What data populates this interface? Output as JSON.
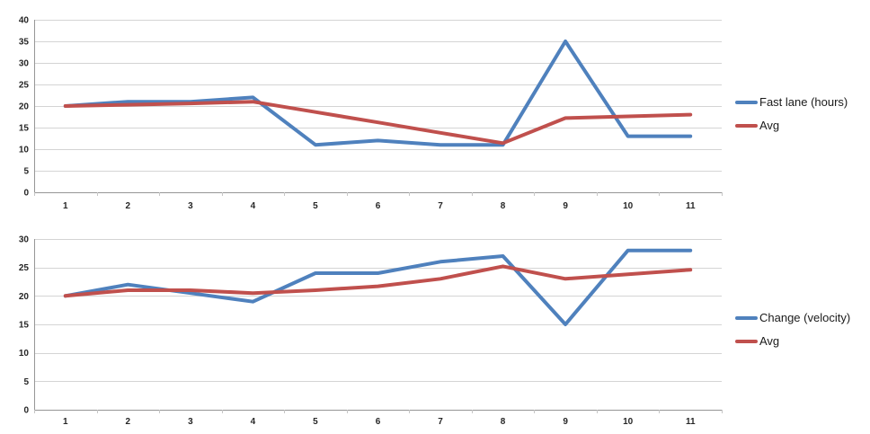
{
  "colors": {
    "background": "#FFFFFF",
    "series_blue": "#4F81BD",
    "series_red": "#C0504D",
    "gridline": "#D4D4D4",
    "axis_line": "#969696",
    "tick_mark": "#C6C6C6",
    "label_text": "#262626"
  },
  "chart_data": [
    {
      "type": "line",
      "title": "",
      "xlabel": "",
      "ylabel": "",
      "categories": [
        "1",
        "2",
        "3",
        "4",
        "5",
        "6",
        "7",
        "8",
        "9",
        "10",
        "11"
      ],
      "series": [
        {
          "name": "Fast lane (hours)",
          "color": "#4F81BD",
          "values": [
            20,
            21,
            21,
            22,
            11,
            12,
            11,
            11,
            35,
            13,
            13
          ]
        },
        {
          "name": "Avg",
          "color": "#C0504D",
          "values": [
            20,
            20.3,
            20.6,
            21,
            18.6,
            16.2,
            13.8,
            11.4,
            17.2,
            17.6,
            18
          ]
        }
      ],
      "ylim": [
        0,
        40
      ],
      "ytick_step": 5,
      "grid": true,
      "legend_position": "right"
    },
    {
      "type": "line",
      "title": "",
      "xlabel": "",
      "ylabel": "",
      "categories": [
        "1",
        "2",
        "3",
        "4",
        "5",
        "6",
        "7",
        "8",
        "9",
        "10",
        "11"
      ],
      "series": [
        {
          "name": "Change (velocity)",
          "color": "#4F81BD",
          "values": [
            20,
            22,
            20.5,
            19,
            24,
            24,
            26,
            27,
            15,
            28,
            28
          ]
        },
        {
          "name": "Avg",
          "color": "#C0504D",
          "values": [
            20,
            21,
            21,
            20.5,
            21,
            21.7,
            23,
            25.2,
            23,
            23.8,
            24.6
          ]
        }
      ],
      "ylim": [
        0,
        30
      ],
      "ytick_step": 5,
      "grid": true,
      "legend_position": "right"
    }
  ]
}
